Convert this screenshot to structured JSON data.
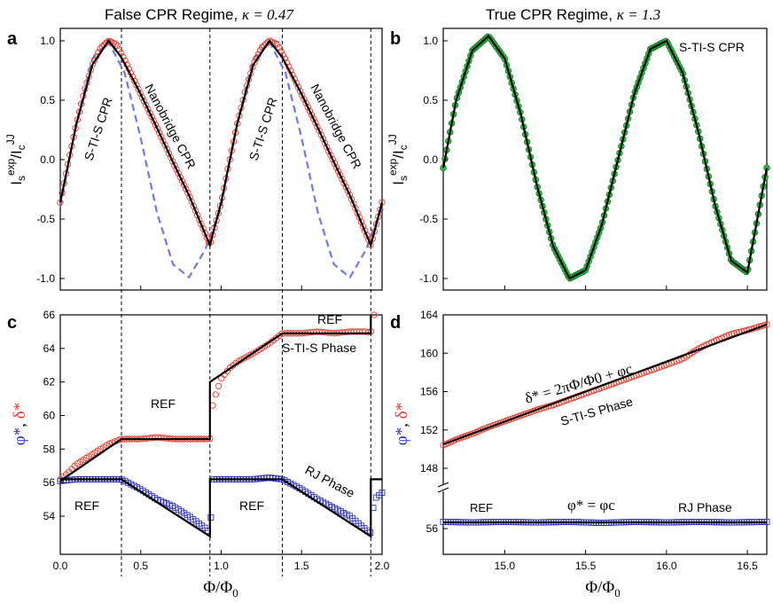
{
  "colors": {
    "red": "#e8392a",
    "blue": "#2b2fbf",
    "green": "#27c43b",
    "dashed": "#6e78e6",
    "black": "#000000"
  },
  "panel_labels": {
    "a": "a",
    "b": "b",
    "c": "c",
    "d": "d"
  },
  "titles": {
    "left_text": "False CPR Regime, ",
    "left_symbol": "κ = 0.47",
    "right_text": "True CPR Regime, ",
    "right_symbol": "κ = 1.3"
  },
  "ylabels": {
    "top_main": "I",
    "top_sub": "s",
    "top_sup": "exp",
    "top_slash": "/I",
    "top_sub2": "c",
    "top_sup2": "JJ",
    "bottom_phi": "φ*",
    "bottom_comma": ", ",
    "bottom_delta": "δ*"
  },
  "xlabel": "Φ/Φ",
  "xlabel_sub": "0",
  "annotations": {
    "a_stis1": "S-TI-S CPR",
    "a_nano1": "Nanobridge CPR",
    "a_stis2": "S-TI-S CPR",
    "a_nano2": "Nanobridge CPR",
    "b_stis": "S-TI-S CPR",
    "c_ref1": "REF",
    "c_ref2": "REF",
    "c_stis": "S-TI-S Phase",
    "c_ref3": "REF",
    "c_ref4": "REF",
    "c_rj": "RJ Phase",
    "d_eq": "δ* = 2πΦ/Φ0 + φc",
    "d_stis": "S-TI-S Phase",
    "d_ref": "REF",
    "d_eq2": "φ* = φc",
    "d_rj": "RJ Phase"
  },
  "chart_data": [
    {
      "panel": "a",
      "type": "line",
      "title": "False CPR Regime, κ = 0.47",
      "ylabel": "Is^exp/Ic^JJ",
      "xlim": [
        0.0,
        2.0
      ],
      "ylim": [
        -1.15,
        1.1
      ],
      "xticks": [
        0.0,
        0.5,
        1.0,
        1.5,
        2.0
      ],
      "yticks": [
        -1.0,
        -0.5,
        0.0,
        0.5,
        1.0
      ],
      "vlines": [
        0.38,
        0.93,
        1.38,
        1.93
      ],
      "series": [
        {
          "role": "data-circles-red",
          "x": [
            0.0,
            0.05,
            0.1,
            0.15,
            0.2,
            0.25,
            0.3,
            0.35,
            0.4,
            0.5,
            0.6,
            0.7,
            0.8,
            0.9,
            0.93,
            1.0,
            1.05,
            1.1,
            1.15,
            1.2,
            1.25,
            1.3,
            1.35,
            1.4,
            1.5,
            1.6,
            1.7,
            1.8,
            1.9,
            1.93,
            2.0
          ],
          "y": [
            -0.36,
            -0.02,
            0.3,
            0.58,
            0.8,
            0.94,
            1.0,
            0.97,
            0.84,
            0.55,
            0.27,
            -0.02,
            -0.3,
            -0.62,
            -0.72,
            -0.36,
            -0.02,
            0.3,
            0.58,
            0.8,
            0.94,
            1.0,
            0.97,
            0.84,
            0.55,
            0.27,
            -0.02,
            -0.3,
            -0.62,
            -0.72,
            -0.36
          ]
        },
        {
          "role": "fit-black",
          "x": [
            0.0,
            0.1,
            0.2,
            0.3,
            0.38,
            0.5,
            0.6,
            0.7,
            0.8,
            0.93,
            1.0,
            1.1,
            1.2,
            1.3,
            1.38,
            1.5,
            1.6,
            1.7,
            1.8,
            1.93,
            2.0
          ],
          "y": [
            -0.36,
            0.3,
            0.8,
            1.0,
            0.86,
            0.55,
            0.27,
            -0.02,
            -0.3,
            -0.72,
            -0.36,
            0.3,
            0.8,
            1.0,
            0.86,
            0.55,
            0.27,
            -0.02,
            -0.3,
            -0.72,
            -0.36
          ]
        },
        {
          "role": "dashed-blue",
          "x": [
            0.0,
            0.1,
            0.2,
            0.3,
            0.4,
            0.5,
            0.6,
            0.7,
            0.8,
            0.9,
            1.0,
            1.1,
            1.2,
            1.3,
            1.4,
            1.5,
            1.6,
            1.7,
            1.8,
            1.9,
            2.0
          ],
          "y": [
            -0.4,
            0.31,
            0.85,
            0.99,
            0.73,
            0.18,
            -0.44,
            -0.88,
            -0.99,
            -0.76,
            -0.4,
            0.31,
            0.85,
            0.99,
            0.73,
            0.18,
            -0.44,
            -0.88,
            -0.99,
            -0.76,
            -0.4
          ]
        }
      ]
    },
    {
      "panel": "b",
      "type": "line",
      "title": "True CPR Regime, κ = 1.3",
      "ylabel": "Is^exp/Ic^JJ",
      "xlim": [
        14.62,
        16.62
      ],
      "ylim": [
        -1.15,
        1.1
      ],
      "yticks": [
        -1.0,
        -0.5,
        0.0,
        0.5,
        1.0
      ],
      "series": [
        {
          "role": "data-circles-green",
          "x": [
            14.62,
            14.7,
            14.8,
            14.9,
            15.0,
            15.1,
            15.2,
            15.3,
            15.4,
            15.5,
            15.6,
            15.7,
            15.8,
            15.9,
            16.0,
            16.1,
            16.2,
            16.3,
            16.4,
            16.5,
            16.62
          ],
          "y": [
            -0.07,
            0.5,
            0.92,
            1.04,
            0.85,
            0.38,
            -0.22,
            -0.73,
            -1.0,
            -0.93,
            -0.55,
            0.0,
            0.55,
            0.93,
            1.0,
            0.73,
            0.22,
            -0.38,
            -0.85,
            -0.95,
            -0.07
          ]
        },
        {
          "role": "fit-black",
          "x": [
            14.62,
            14.7,
            14.8,
            14.9,
            15.0,
            15.1,
            15.2,
            15.3,
            15.4,
            15.5,
            15.6,
            15.7,
            15.8,
            15.9,
            16.0,
            16.1,
            16.2,
            16.3,
            16.4,
            16.5,
            16.62
          ],
          "y": [
            -0.07,
            0.5,
            0.92,
            1.04,
            0.85,
            0.38,
            -0.22,
            -0.73,
            -1.0,
            -0.93,
            -0.55,
            0.0,
            0.55,
            0.93,
            1.0,
            0.73,
            0.22,
            -0.38,
            -0.85,
            -0.95,
            -0.07
          ]
        }
      ]
    },
    {
      "panel": "c",
      "type": "line",
      "ylabel": "φ*, δ*",
      "xlabel": "Φ/Φ0",
      "xlim": [
        0.0,
        2.0
      ],
      "ylim": [
        52.2,
        66.0
      ],
      "xticks": [
        0.0,
        0.5,
        1.0,
        1.5,
        2.0
      ],
      "yticks": [
        54,
        56,
        58,
        60,
        62,
        64,
        66
      ],
      "vlines": [
        0.38,
        0.93,
        1.38,
        1.93
      ],
      "series": [
        {
          "role": "delta-data-red",
          "x": [
            0.0,
            0.05,
            0.1,
            0.15,
            0.2,
            0.25,
            0.3,
            0.38,
            0.5,
            0.6,
            0.7,
            0.8,
            0.9,
            0.93,
            0.95,
            1.0,
            1.05,
            1.1,
            1.2,
            1.3,
            1.38,
            1.5,
            1.6,
            1.7,
            1.8,
            1.9,
            1.93,
            1.95
          ],
          "y": [
            56.2,
            56.6,
            57.1,
            57.4,
            57.7,
            58.0,
            58.3,
            58.6,
            58.6,
            58.7,
            58.6,
            58.6,
            58.6,
            58.6,
            60.8,
            62.2,
            62.8,
            63.2,
            63.7,
            64.3,
            64.9,
            64.9,
            65.0,
            64.9,
            65.0,
            65.0,
            64.9,
            66.0
          ]
        },
        {
          "role": "delta-fit-black",
          "x": [
            0.0,
            0.38,
            0.93,
            0.93,
            1.38,
            1.93,
            1.93
          ],
          "y": [
            56.1,
            58.6,
            58.6,
            62.0,
            64.9,
            64.9,
            66.0
          ]
        },
        {
          "role": "phi-data-blue",
          "x": [
            0.0,
            0.1,
            0.2,
            0.3,
            0.38,
            0.5,
            0.6,
            0.7,
            0.8,
            0.9,
            0.93,
            0.95,
            1.0,
            1.1,
            1.2,
            1.3,
            1.38,
            1.5,
            1.6,
            1.7,
            1.8,
            1.9,
            1.93,
            1.95,
            2.0
          ],
          "y": [
            56.1,
            56.2,
            56.2,
            56.2,
            56.2,
            55.6,
            55.0,
            54.6,
            54.0,
            53.3,
            53.0,
            56.2,
            56.2,
            56.2,
            56.2,
            56.3,
            56.2,
            55.6,
            55.0,
            54.5,
            54.0,
            53.2,
            53.0,
            55.0,
            55.4
          ]
        },
        {
          "role": "phi-fit-black",
          "x": [
            0.0,
            0.38,
            0.93,
            0.93,
            1.38,
            1.93,
            1.93,
            2.0
          ],
          "y": [
            56.2,
            56.2,
            52.8,
            56.2,
            56.2,
            52.8,
            56.2,
            56.2
          ]
        }
      ]
    },
    {
      "panel": "d",
      "type": "line",
      "ylabel": "φ*, δ*",
      "xlabel": "Φ/Φ0",
      "xlim": [
        14.62,
        16.62
      ],
      "xticks": [
        15.0,
        15.5,
        16.0,
        16.5
      ],
      "yticks_upper": [
        148,
        152,
        156,
        160,
        164
      ],
      "yticks_lower": [
        56
      ],
      "axis_break": true,
      "series": [
        {
          "role": "delta-data-red",
          "x": [
            14.62,
            14.7,
            14.8,
            14.9,
            15.0,
            15.1,
            15.2,
            15.3,
            15.4,
            15.5,
            15.6,
            15.7,
            15.8,
            15.9,
            16.0,
            16.1,
            16.2,
            16.3,
            16.4,
            16.5,
            16.62
          ],
          "y": [
            150.4,
            151.0,
            151.6,
            152.3,
            152.9,
            153.5,
            154.1,
            154.6,
            155.2,
            155.8,
            156.4,
            157.0,
            157.6,
            158.2,
            158.8,
            159.4,
            160.5,
            161.3,
            162.0,
            162.4,
            163.0
          ]
        },
        {
          "role": "delta-fit-black",
          "x": [
            14.62,
            16.62
          ],
          "y": [
            150.5,
            163.0
          ]
        },
        {
          "role": "phi-data-blue",
          "x": [
            14.62,
            14.8,
            15.0,
            15.2,
            15.4,
            15.6,
            15.8,
            16.0,
            16.2,
            16.4,
            16.62
          ],
          "y": [
            56.2,
            56.3,
            56.2,
            56.3,
            56.2,
            56.4,
            56.2,
            56.3,
            56.2,
            56.3,
            56.2
          ]
        },
        {
          "role": "phi-fit-black",
          "x": [
            14.62,
            16.62
          ],
          "y": [
            56.3,
            56.3
          ]
        }
      ]
    }
  ]
}
